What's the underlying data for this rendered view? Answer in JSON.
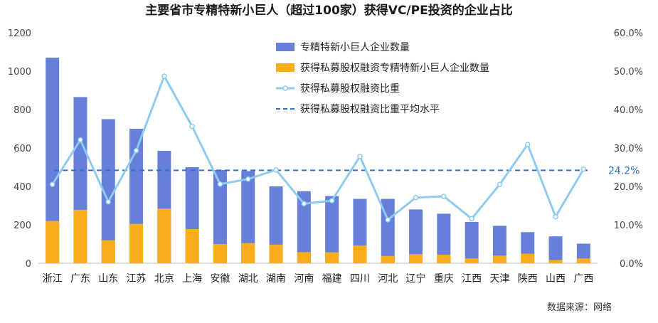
{
  "chart_data": {
    "type": "bar",
    "title": "主要省市专精特新小巨人（超过100家）获得VC/PE投资的企业占比",
    "categories": [
      "浙江",
      "广东",
      "山东",
      "江苏",
      "北京",
      "上海",
      "安徽",
      "湖北",
      "湖南",
      "河南",
      "福建",
      "四川",
      "河北",
      "辽宁",
      "重庆",
      "江西",
      "天津",
      "陕西",
      "山西",
      "广西"
    ],
    "series": [
      {
        "name": "专精特新小巨人企业数量",
        "axis": "left",
        "type": "bar",
        "color": "#6680d9",
        "values": [
          1070,
          865,
          750,
          700,
          585,
          500,
          485,
          480,
          400,
          375,
          350,
          335,
          335,
          280,
          258,
          215,
          195,
          162,
          140,
          102
        ]
      },
      {
        "name": "获得私募股权融资专精特新小巨人企业数量",
        "axis": "left",
        "type": "bar",
        "color": "#f9ad1c",
        "values": [
          220,
          278,
          120,
          205,
          285,
          178,
          100,
          105,
          97,
          58,
          57,
          93,
          38,
          48,
          45,
          25,
          40,
          50,
          17,
          25
        ]
      },
      {
        "name": "获得私募股权融资比重",
        "axis": "right",
        "type": "line",
        "color": "#8fcbef",
        "values": [
          20.5,
          32.1,
          16.0,
          29.3,
          48.7,
          35.6,
          20.6,
          21.9,
          24.3,
          15.5,
          16.3,
          27.8,
          11.3,
          17.1,
          17.4,
          11.6,
          20.5,
          30.9,
          12.1,
          24.5
        ]
      },
      {
        "name": "获得私募股权融资比重平均水平",
        "axis": "right",
        "type": "dashed-line",
        "color": "#2f6fcf",
        "value": 24.2,
        "label": "24.2%"
      }
    ],
    "ylim_left": [
      0,
      1200
    ],
    "yticks_left": [
      "0",
      "200",
      "400",
      "600",
      "800",
      "1000",
      "1200"
    ],
    "ylim_right": [
      0,
      60
    ],
    "yticks_right": [
      "0.0%",
      "10.0%",
      "20.0%",
      "30.0%",
      "40.0%",
      "50.0%",
      "60.0%"
    ],
    "xlabel": "",
    "ylabel": "",
    "grid": false,
    "legend_position": "top-center",
    "source": "数据来源：网络"
  }
}
